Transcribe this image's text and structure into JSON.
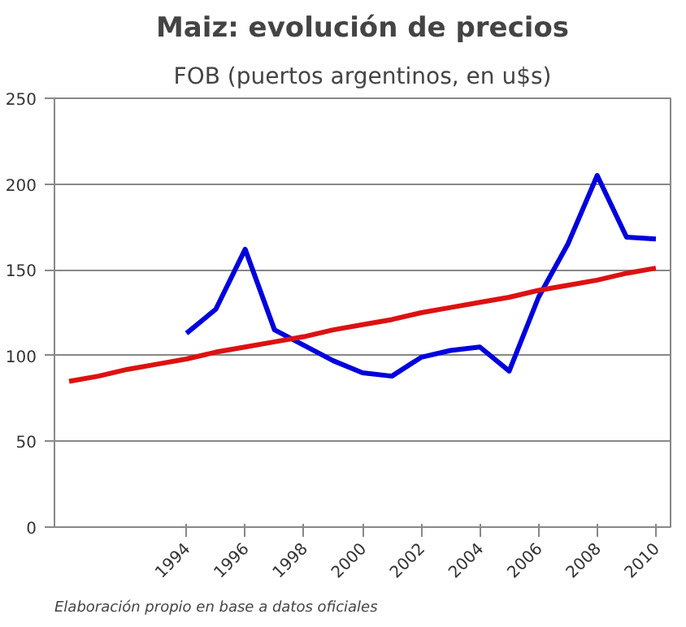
{
  "chart_data": {
    "type": "line",
    "title": "Maiz: evolución de precios",
    "subtitle": "FOB (puertos argentinos, en u$s)",
    "annotations": [
      "Elaboración propio en base a datos oficiales"
    ],
    "categories": [
      null,
      null,
      null,
      null,
      "1994",
      null,
      "1996",
      null,
      "1998",
      null,
      "2000",
      null,
      "2002",
      null,
      "2004",
      null,
      "2006",
      null,
      "2008",
      null,
      "2010"
    ],
    "series": [
      {
        "color": "#0000dd",
        "values": [
          null,
          null,
          null,
          null,
          113,
          127,
          162,
          115,
          106,
          97,
          90,
          88,
          99,
          103,
          105,
          91,
          134,
          165,
          205,
          169,
          168
        ]
      },
      {
        "color": "#dd1111",
        "values": [
          85,
          88,
          92,
          95,
          98,
          102,
          105,
          108,
          111,
          115,
          118,
          121,
          125,
          128,
          131,
          134,
          138,
          141,
          144,
          148,
          151
        ]
      }
    ],
    "ylim": [
      0,
      250
    ],
    "yticks": [
      0,
      50,
      100,
      150,
      200,
      250
    ],
    "grid": "y"
  }
}
